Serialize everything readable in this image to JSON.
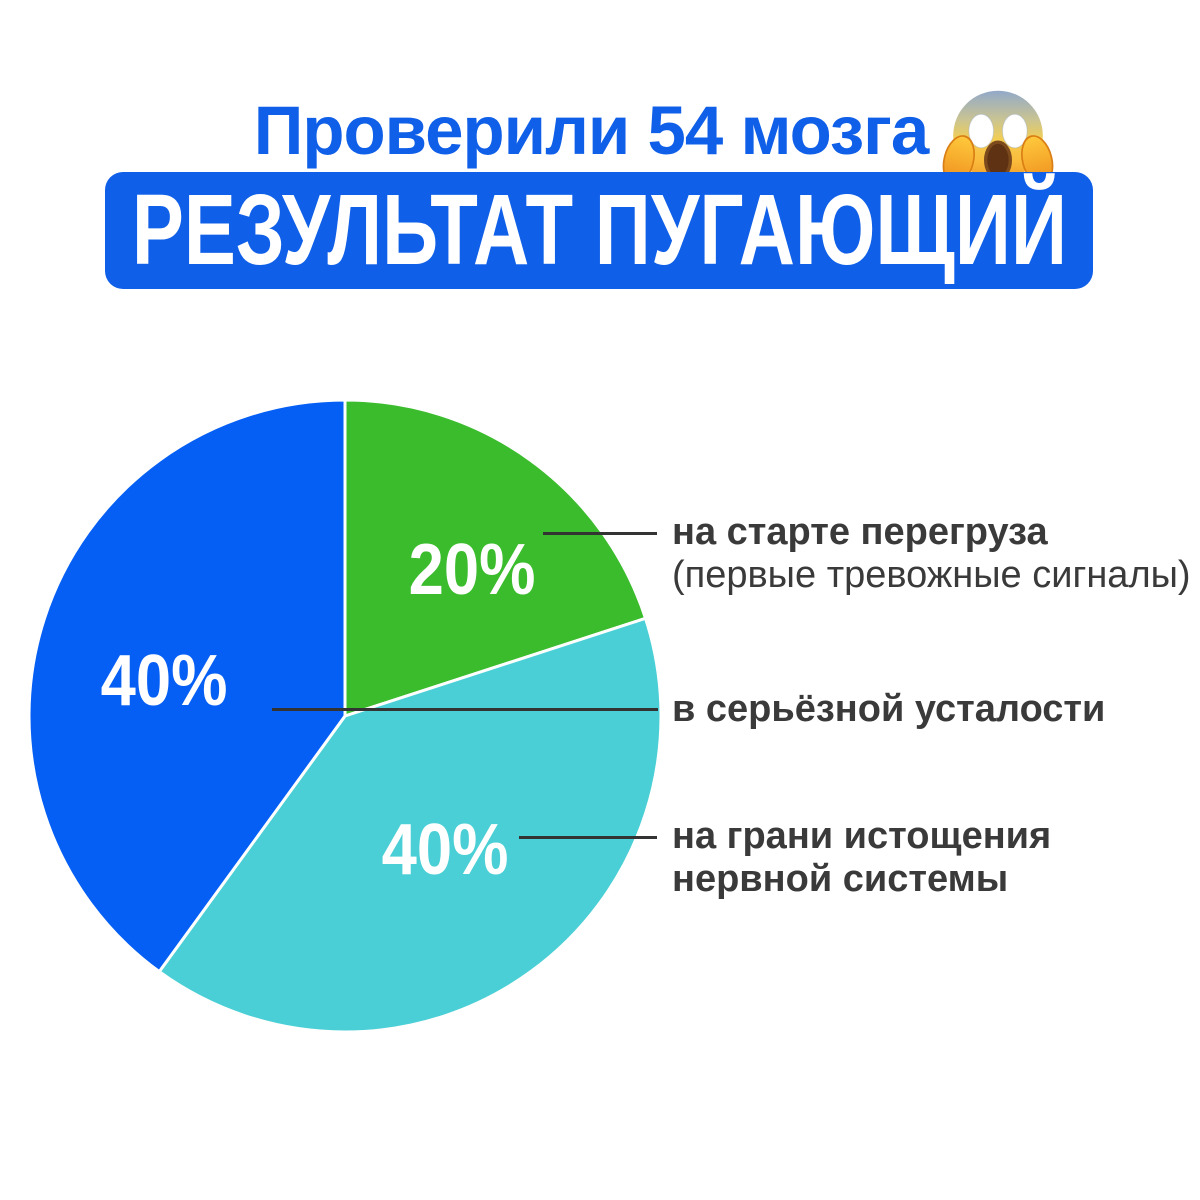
{
  "page": {
    "background": "#ffffff"
  },
  "title": {
    "text": "Проверили 54 мозга",
    "emoji": "😱",
    "emoji_name": "face-screaming-in-fear",
    "color": "#0f5fe8"
  },
  "banner": {
    "text": "РЕЗУЛЬТАТ ПУГАЮЩИЙ",
    "bg_color": "#0f5fe8",
    "text_color": "#ffffff"
  },
  "chart_data": {
    "type": "pie",
    "title": "Проверили 54 мозга — результат пугающий",
    "sample_size_from_title": 54,
    "start_angle_deg": 0,
    "direction": "clockwise",
    "legend_position": "right-callouts",
    "slices": [
      {
        "name": "overload-start",
        "label": "на старте перегруза (первые тревожные сигналы)",
        "value": 20,
        "unit": "%",
        "percent_label": "20%",
        "color": "#3abc2c"
      },
      {
        "name": "exhaustion-brink",
        "label": "на грани истощения нервной системы",
        "value": 40,
        "unit": "%",
        "percent_label": "40%",
        "color": "#49cfd5"
      },
      {
        "name": "serious-fatigue",
        "label": "в серьёзной усталости",
        "value": 40,
        "unit": "%",
        "percent_label": "40%",
        "color": "#055ff5"
      }
    ]
  },
  "callouts": [
    {
      "line1": "на старте перегруза",
      "line2": "(первые тревожные сигналы)"
    },
    {
      "line1": "в серьёзной усталости",
      "line2": ""
    },
    {
      "line1": "на грани истощения",
      "line2": "нервной системы"
    }
  ]
}
